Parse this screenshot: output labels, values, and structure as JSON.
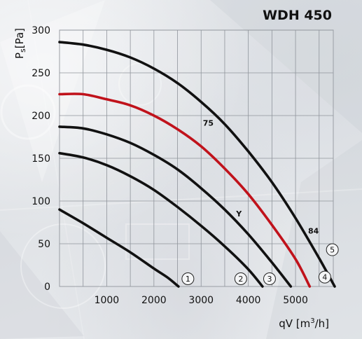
{
  "chart_data": {
    "type": "line",
    "title": "WDH 450",
    "ylabel": "P_s [Pa]",
    "ylabel_main": "P",
    "ylabel_sub": "s",
    "ylabel_unit": "[Pa]",
    "xlabel": "qV [m³/h]",
    "xlabel_main": "qV [m",
    "xlabel_sup": "3",
    "xlabel_end": "/h]",
    "xlim": [
      0,
      5800
    ],
    "ylim": [
      0,
      300
    ],
    "xticks": [
      1000,
      2000,
      3000,
      4000,
      5000
    ],
    "yticks": [
      0,
      50,
      100,
      150,
      200,
      250,
      300
    ],
    "grid": true,
    "series": [
      {
        "name": "1",
        "color": "#111111",
        "x": [
          0,
          500,
          1000,
          1500,
          2000,
          2300,
          2520
        ],
        "y": [
          90,
          74,
          57,
          40,
          21,
          10,
          0
        ]
      },
      {
        "name": "2",
        "color": "#111111",
        "x": [
          0,
          500,
          1000,
          1500,
          2000,
          2500,
          3000,
          3500,
          4000,
          4300
        ],
        "y": [
          156,
          151,
          142,
          129,
          113,
          93,
          71,
          47,
          20,
          0
        ]
      },
      {
        "name": "3",
        "color": "#111111",
        "x": [
          0,
          500,
          1000,
          1500,
          2000,
          2500,
          3000,
          3500,
          4000,
          4500,
          4900
        ],
        "y": [
          187,
          185,
          178,
          168,
          154,
          137,
          115,
          90,
          61,
          28,
          0
        ]
      },
      {
        "name": "4",
        "color": "#c0121b",
        "x": [
          0,
          500,
          1000,
          1500,
          2000,
          2500,
          3000,
          3500,
          4000,
          4500,
          5000,
          5300
        ],
        "y": [
          225,
          225,
          219,
          212,
          200,
          184,
          164,
          138,
          108,
          72,
          32,
          0
        ]
      },
      {
        "name": "5",
        "color": "#111111",
        "x": [
          0,
          500,
          1000,
          1500,
          2000,
          2500,
          3000,
          3500,
          4000,
          4500,
          5000,
          5500,
          5830
        ],
        "y": [
          286,
          283,
          277,
          268,
          255,
          238,
          216,
          190,
          158,
          122,
          80,
          33,
          0
        ]
      }
    ],
    "annotations": [
      {
        "text": "75",
        "x": 3150,
        "y": 188
      },
      {
        "text": "Y",
        "x": 3800,
        "y": 82
      },
      {
        "text": "84",
        "x": 5380,
        "y": 62
      }
    ],
    "curve_labels": [
      {
        "text": "1",
        "x": 2720,
        "y": 9
      },
      {
        "text": "2",
        "x": 3840,
        "y": 9
      },
      {
        "text": "3",
        "x": 4450,
        "y": 9
      },
      {
        "text": "4",
        "x": 5620,
        "y": 11
      },
      {
        "text": "5",
        "x": 5780,
        "y": 43
      }
    ]
  }
}
